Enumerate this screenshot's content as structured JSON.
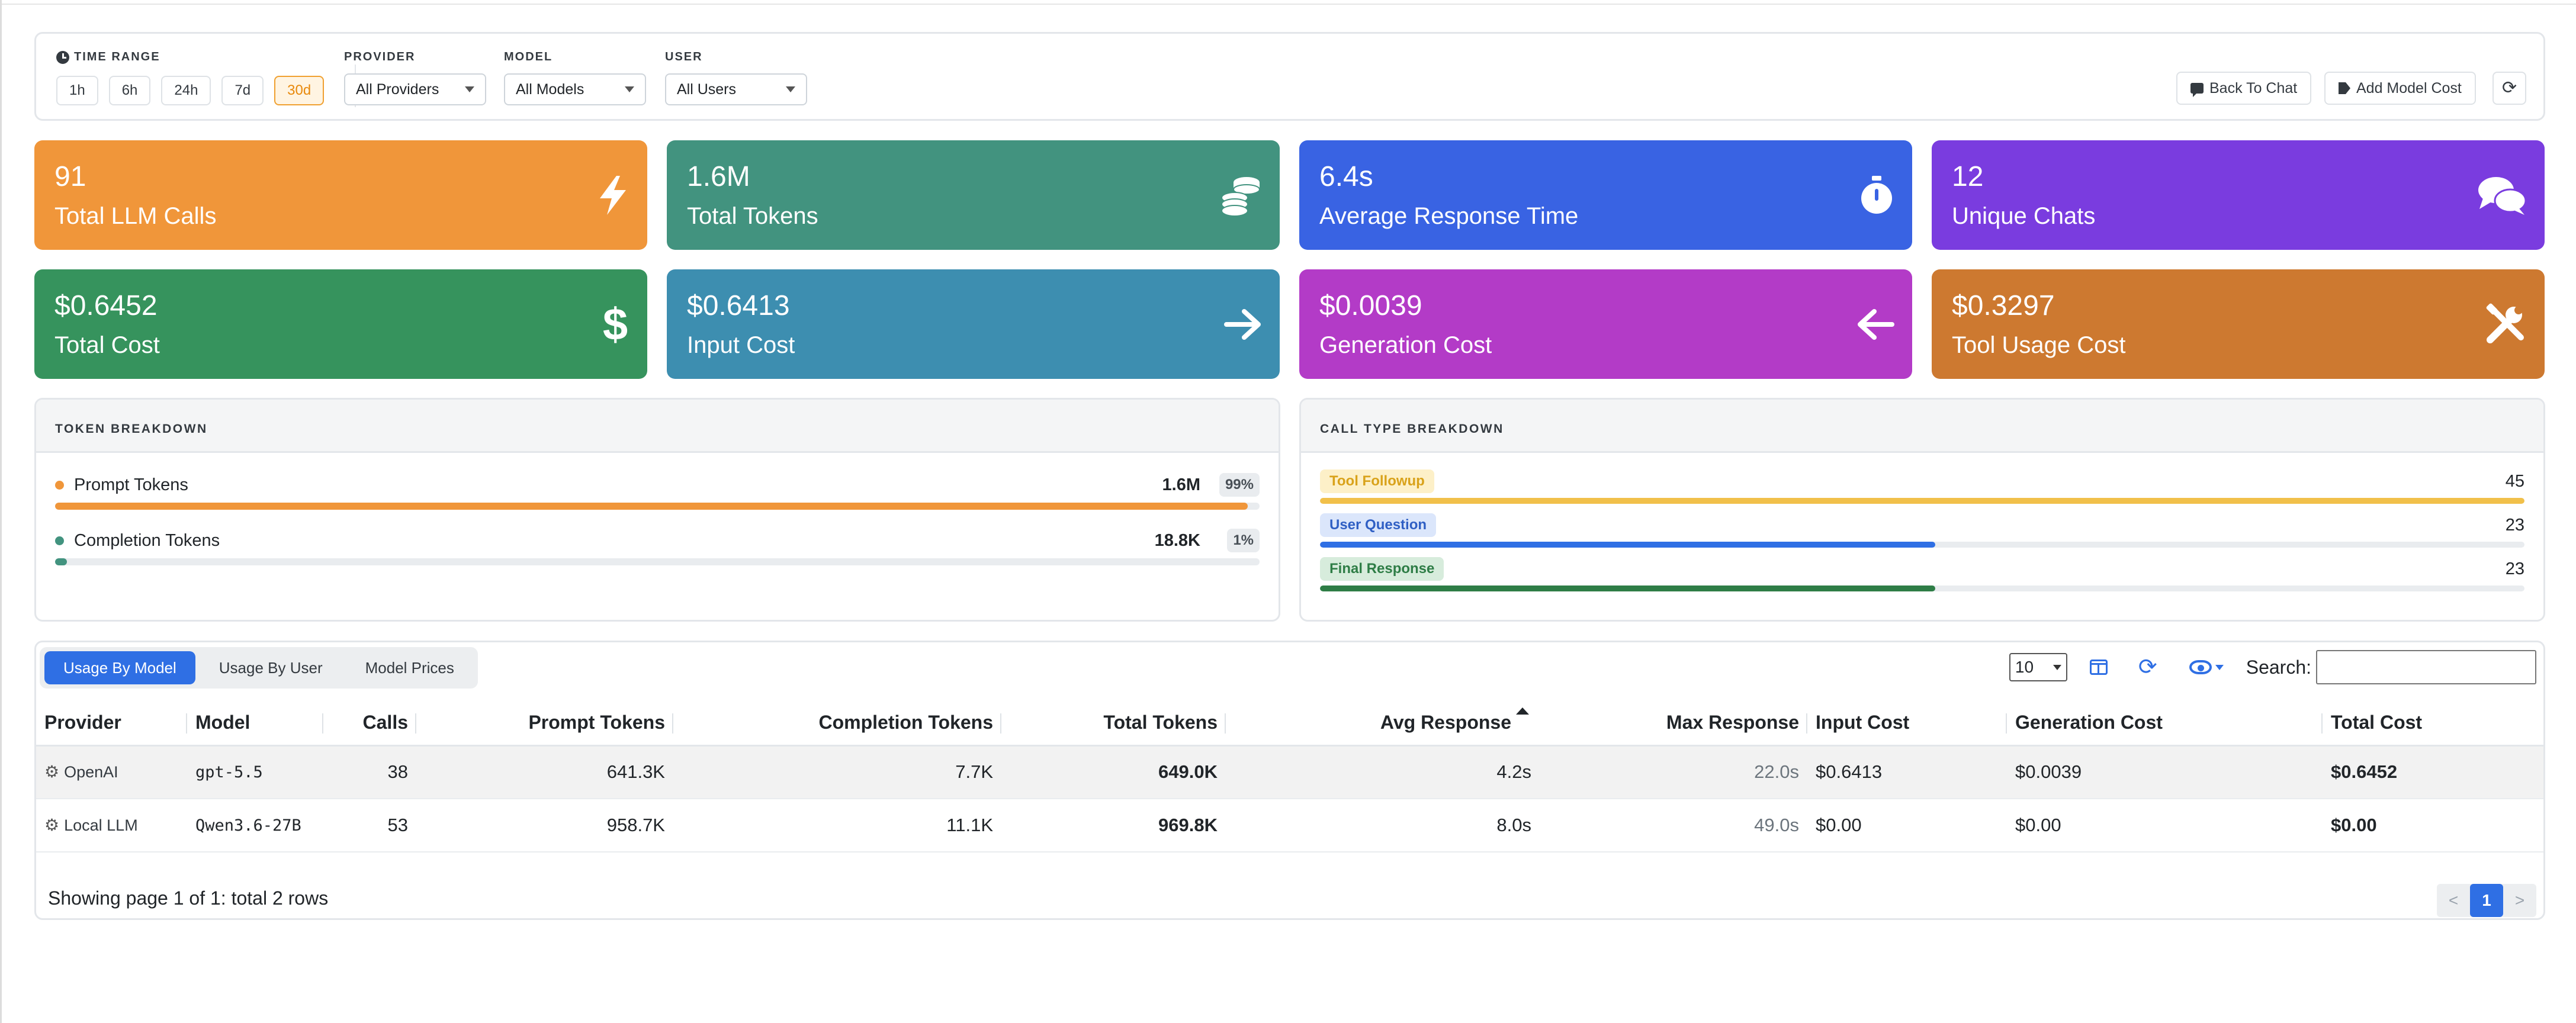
{
  "filters": {
    "time_range": {
      "label": "TIME RANGE",
      "options": [
        "1h",
        "6h",
        "24h",
        "7d",
        "30d"
      ],
      "selected": "30d"
    },
    "provider": {
      "label": "PROVIDER",
      "value": "All Providers"
    },
    "model": {
      "label": "MODEL",
      "value": "All Models"
    },
    "user": {
      "label": "USER",
      "value": "All Users"
    },
    "back_to_chat": "Back To Chat",
    "add_model_cost": "Add Model Cost"
  },
  "stats": [
    {
      "value": "91",
      "label": "Total LLM Calls",
      "icon": "bolt-icon",
      "color": "#f0963a"
    },
    {
      "value": "1.6M",
      "label": "Total Tokens",
      "icon": "coins-icon",
      "color": "#42937f"
    },
    {
      "value": "6.4s",
      "label": "Average Response Time",
      "icon": "stopwatch-icon",
      "color": "#3963e3"
    },
    {
      "value": "12",
      "label": "Unique Chats",
      "icon": "comments-icon",
      "color": "#7a3cdf"
    },
    {
      "value": "$0.6452",
      "label": "Total Cost",
      "icon": "dollar-icon",
      "color": "#36935d"
    },
    {
      "value": "$0.6413",
      "label": "Input Cost",
      "icon": "arrow-right-icon",
      "color": "#3d8eb0"
    },
    {
      "value": "$0.0039",
      "label": "Generation Cost",
      "icon": "arrow-left-icon",
      "color": "#b33bc7"
    },
    {
      "value": "$0.3297",
      "label": "Tool Usage Cost",
      "icon": "tools-icon",
      "color": "#cd7930"
    }
  ],
  "token_breakdown": {
    "title": "TOKEN BREAKDOWN",
    "rows": [
      {
        "name": "Prompt Tokens",
        "value": "1.6M",
        "pct": "99%",
        "fraction": 0.99,
        "color": "#f0963a"
      },
      {
        "name": "Completion Tokens",
        "value": "18.8K",
        "pct": "1%",
        "fraction": 0.01,
        "color": "#42937f"
      }
    ]
  },
  "call_type_breakdown": {
    "title": "CALL TYPE BREAKDOWN",
    "rows": [
      {
        "name": "Tool Followup",
        "count": "45",
        "fraction": 1.0,
        "bar": "#f1c04a",
        "badge_bg": "#fdf0c8",
        "badge_fg": "#d9a21a"
      },
      {
        "name": "User Question",
        "count": "23",
        "fraction": 0.511,
        "bar": "#2f6fe4",
        "badge_bg": "#dbe6fb",
        "badge_fg": "#2f5fc4"
      },
      {
        "name": "Final Response",
        "count": "23",
        "fraction": 0.511,
        "bar": "#2e7d46",
        "badge_bg": "#d7ecdc",
        "badge_fg": "#2e7d46"
      }
    ]
  },
  "table": {
    "tabs": [
      "Usage By Model",
      "Usage By User",
      "Model Prices"
    ],
    "active_tab": "Usage By Model",
    "page_size": "10",
    "search_label": "Search:",
    "search_value": "",
    "columns": [
      "Provider",
      "Model",
      "Calls",
      "Prompt Tokens",
      "Completion Tokens",
      "Total Tokens",
      "Avg Response",
      "Max Response",
      "Input Cost",
      "Generation Cost",
      "Total Cost"
    ],
    "rows": [
      [
        "OpenAI",
        "gpt-5.5",
        "38",
        "641.3K",
        "7.7K",
        "649.0K",
        "4.2s",
        "22.0s",
        "$0.6413",
        "$0.0039",
        "$0.6452"
      ],
      [
        "Local LLM",
        "Qwen3.6-27B",
        "53",
        "958.7K",
        "11.1K",
        "969.8K",
        "8.0s",
        "49.0s",
        "$0.00",
        "$0.00",
        "$0.00"
      ]
    ],
    "footer": "Showing page 1 of 1: total 2 rows",
    "pager": {
      "prev": "<",
      "current": "1",
      "next": ">"
    }
  }
}
